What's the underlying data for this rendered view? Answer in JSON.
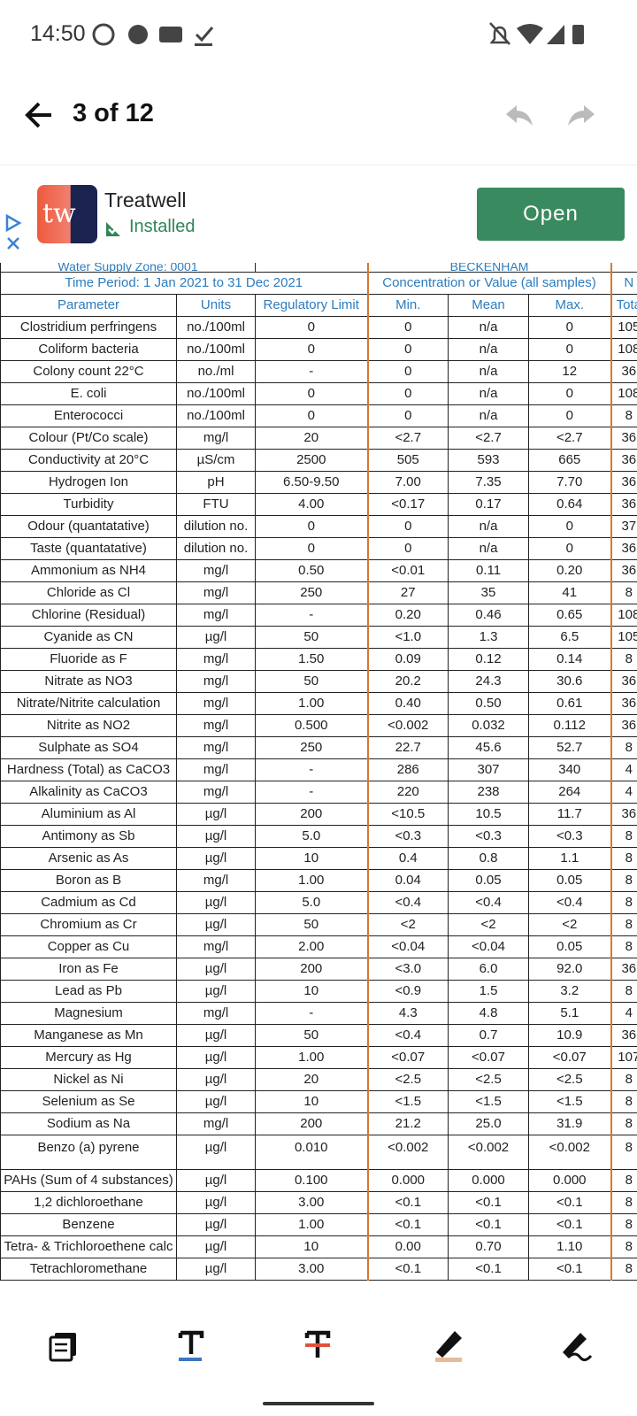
{
  "status_bar": {
    "time": "14:50"
  },
  "toolbar": {
    "page_indicator": "3 of 12"
  },
  "ad": {
    "logo": "tw",
    "app_name": "Treatwell",
    "status": "Installed",
    "button": "Open"
  },
  "table": {
    "zone_row": [
      "Water Supply Zone: 0001",
      "BECKENHAM"
    ],
    "group_headers": [
      "Time Period: 1 Jan 2021 to 31 Dec 2021",
      "Concentration or Value (all samples)",
      "N"
    ],
    "columns": [
      "Parameter",
      "Units",
      "Regulatory Limit",
      "Min.",
      "Mean",
      "Max.",
      "Tota"
    ],
    "rows": [
      [
        "Clostridium perfringens",
        "no./100ml",
        "0",
        "0",
        "n/a",
        "0",
        "105"
      ],
      [
        "Coliform bacteria",
        "no./100ml",
        "0",
        "0",
        "n/a",
        "0",
        "108"
      ],
      [
        "Colony count 22°C",
        "no./ml",
        "-",
        "0",
        "n/a",
        "12",
        "36"
      ],
      [
        "E. coli",
        "no./100ml",
        "0",
        "0",
        "n/a",
        "0",
        "108"
      ],
      [
        "Enterococci",
        "no./100ml",
        "0",
        "0",
        "n/a",
        "0",
        "8"
      ],
      [
        "Colour (Pt/Co scale)",
        "mg/l",
        "20",
        "<2.7",
        "<2.7",
        "<2.7",
        "36"
      ],
      [
        "Conductivity at 20°C",
        "µS/cm",
        "2500",
        "505",
        "593",
        "665",
        "36"
      ],
      [
        "Hydrogen Ion",
        "pH",
        "6.50-9.50",
        "7.00",
        "7.35",
        "7.70",
        "36"
      ],
      [
        "Turbidity",
        "FTU",
        "4.00",
        "<0.17",
        "0.17",
        "0.64",
        "36"
      ],
      [
        "Odour (quantatative)",
        "dilution no.",
        "0",
        "0",
        "n/a",
        "0",
        "37"
      ],
      [
        "Taste (quantatative)",
        "dilution no.",
        "0",
        "0",
        "n/a",
        "0",
        "36"
      ],
      [
        "Ammonium as NH4",
        "mg/l",
        "0.50",
        "<0.01",
        "0.11",
        "0.20",
        "36"
      ],
      [
        "Chloride as Cl",
        "mg/l",
        "250",
        "27",
        "35",
        "41",
        "8"
      ],
      [
        "Chlorine (Residual)",
        "mg/l",
        "-",
        "0.20",
        "0.46",
        "0.65",
        "108"
      ],
      [
        "Cyanide as CN",
        "µg/l",
        "50",
        "<1.0",
        "1.3",
        "6.5",
        "105"
      ],
      [
        "Fluoride as F",
        "mg/l",
        "1.50",
        "0.09",
        "0.12",
        "0.14",
        "8"
      ],
      [
        "Nitrate as NO3",
        "mg/l",
        "50",
        "20.2",
        "24.3",
        "30.6",
        "36"
      ],
      [
        "Nitrate/Nitrite calculation",
        "mg/l",
        "1.00",
        "0.40",
        "0.50",
        "0.61",
        "36"
      ],
      [
        "Nitrite as NO2",
        "mg/l",
        "0.500",
        "<0.002",
        "0.032",
        "0.112",
        "36"
      ],
      [
        "Sulphate as SO4",
        "mg/l",
        "250",
        "22.7",
        "45.6",
        "52.7",
        "8"
      ],
      [
        "Hardness (Total) as CaCO3",
        "mg/l",
        "-",
        "286",
        "307",
        "340",
        "4"
      ],
      [
        "Alkalinity as CaCO3",
        "mg/l",
        "-",
        "220",
        "238",
        "264",
        "4"
      ],
      [
        "Aluminium as Al",
        "µg/l",
        "200",
        "<10.5",
        "10.5",
        "11.7",
        "36"
      ],
      [
        "Antimony as Sb",
        "µg/l",
        "5.0",
        "<0.3",
        "<0.3",
        "<0.3",
        "8"
      ],
      [
        "Arsenic as As",
        "µg/l",
        "10",
        "0.4",
        "0.8",
        "1.1",
        "8"
      ],
      [
        "Boron as B",
        "mg/l",
        "1.00",
        "0.04",
        "0.05",
        "0.05",
        "8"
      ],
      [
        "Cadmium as Cd",
        "µg/l",
        "5.0",
        "<0.4",
        "<0.4",
        "<0.4",
        "8"
      ],
      [
        "Chromium as Cr",
        "µg/l",
        "50",
        "<2",
        "<2",
        "<2",
        "8"
      ],
      [
        "Copper as Cu",
        "mg/l",
        "2.00",
        "<0.04",
        "<0.04",
        "0.05",
        "8"
      ],
      [
        "Iron as Fe",
        "µg/l",
        "200",
        "<3.0",
        "6.0",
        "92.0",
        "36"
      ],
      [
        "Lead as Pb",
        "µg/l",
        "10",
        "<0.9",
        "1.5",
        "3.2",
        "8"
      ],
      [
        "Magnesium",
        "mg/l",
        "-",
        "4.3",
        "4.8",
        "5.1",
        "4"
      ],
      [
        "Manganese as Mn",
        "µg/l",
        "50",
        "<0.4",
        "0.7",
        "10.9",
        "36"
      ],
      [
        "Mercury as Hg",
        "µg/l",
        "1.00",
        "<0.07",
        "<0.07",
        "<0.07",
        "107"
      ],
      [
        "Nickel as Ni",
        "µg/l",
        "20",
        "<2.5",
        "<2.5",
        "<2.5",
        "8"
      ],
      [
        "Selenium as Se",
        "µg/l",
        "10",
        "<1.5",
        "<1.5",
        "<1.5",
        "8"
      ],
      [
        "Sodium as Na",
        "mg/l",
        "200",
        "21.2",
        "25.0",
        "31.9",
        "8"
      ],
      [
        "Benzo (a) pyrene",
        "µg/l",
        "0.010",
        "<0.002",
        "<0.002",
        "<0.002",
        "8"
      ],
      [
        "PAHs (Sum of 4 substances)",
        "µg/l",
        "0.100",
        "0.000",
        "0.000",
        "0.000",
        "8"
      ],
      [
        "1,2 dichloroethane",
        "µg/l",
        "3.00",
        "<0.1",
        "<0.1",
        "<0.1",
        "8"
      ],
      [
        "Benzene",
        "µg/l",
        "1.00",
        "<0.1",
        "<0.1",
        "<0.1",
        "8"
      ],
      [
        "Tetra- & Trichloroethene calc",
        "µg/l",
        "10",
        "0.00",
        "0.70",
        "1.10",
        "8"
      ],
      [
        "Tetrachloromethane",
        "µg/l",
        "3.00",
        "<0.1",
        "<0.1",
        "<0.1",
        "8"
      ]
    ]
  }
}
